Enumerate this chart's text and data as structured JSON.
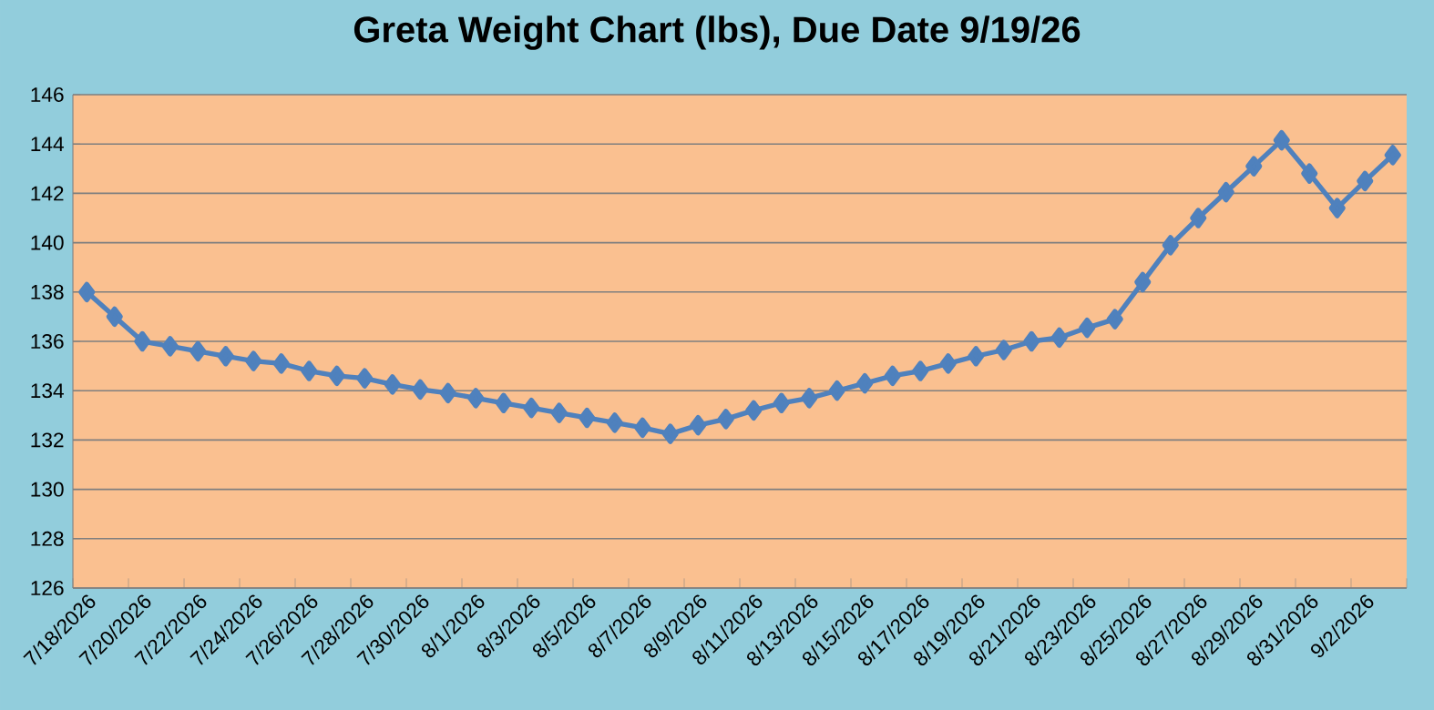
{
  "chart_data": {
    "type": "line",
    "title": "Greta Weight Chart (lbs), Due Date 9/19/26",
    "categories": [
      "7/18/2026",
      null,
      "7/20/2026",
      null,
      "7/22/2026",
      null,
      "7/24/2026",
      null,
      "7/26/2026",
      null,
      "7/28/2026",
      null,
      "7/30/2026",
      null,
      "8/1/2026",
      null,
      "8/3/2026",
      null,
      "8/5/2026",
      null,
      "8/7/2026",
      null,
      "8/9/2026",
      null,
      "8/11/2026",
      null,
      "8/13/2026",
      null,
      "8/15/2026",
      null,
      "8/17/2026",
      null,
      "8/19/2026",
      null,
      "8/21/2026",
      null,
      "8/23/2026",
      null,
      "8/25/2026",
      null,
      "8/27/2026",
      null,
      "8/29/2026",
      null,
      "8/31/2026",
      null,
      "9/2/2026",
      null
    ],
    "values": [
      138.0,
      137.0,
      136.0,
      135.8,
      135.6,
      135.4,
      135.2,
      135.1,
      134.8,
      134.6,
      134.5,
      134.25,
      134.05,
      133.9,
      133.7,
      133.5,
      133.3,
      133.1,
      132.9,
      132.7,
      132.5,
      132.25,
      132.6,
      132.85,
      133.2,
      133.5,
      133.7,
      134.0,
      134.3,
      134.6,
      134.8,
      135.1,
      135.4,
      135.65,
      136.0,
      136.15,
      136.55,
      136.9,
      138.4,
      139.9,
      141.0,
      142.05,
      143.1,
      144.15,
      142.8,
      141.4,
      142.5,
      143.55
    ],
    "color": "#4f81bd",
    "marker": "diamond",
    "line_style": "solid",
    "ylim": [
      126,
      146
    ],
    "yticks": [
      126,
      128,
      130,
      132,
      134,
      136,
      138,
      140,
      142,
      144,
      146
    ],
    "grid": "y"
  }
}
